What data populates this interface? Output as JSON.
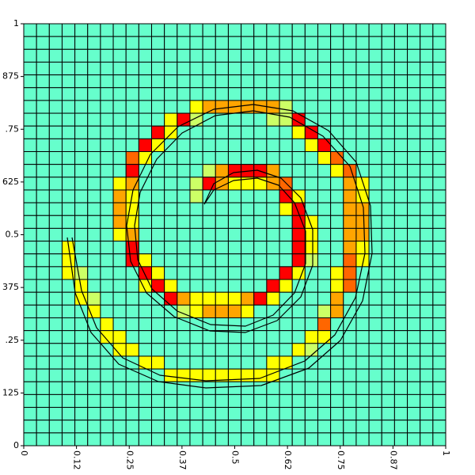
{
  "chart_data": {
    "type": "heatmap",
    "xlim": [
      0,
      1
    ],
    "ylim": [
      0,
      1
    ],
    "xticks": [
      0,
      {
        "value": 0.125,
        "label": "0.12"
      },
      0.25,
      {
        "value": 0.375,
        "label": "0.37"
      },
      0.5,
      {
        "value": 0.625,
        "label": "0.62"
      },
      0.75,
      {
        "value": 0.875,
        "label": "0.87"
      },
      1
    ],
    "yticks": [
      0,
      {
        "value": 0.125,
        "label": "125"
      },
      {
        "value": 0.25,
        "label": ".25"
      },
      {
        "value": 0.375,
        "label": "375"
      },
      0.5,
      {
        "value": 0.625,
        "label": "625"
      },
      {
        "value": 0.75,
        "label": ".75"
      },
      {
        "value": 0.875,
        "label": "875"
      },
      1
    ],
    "grid": true,
    "colors": [
      "#66ffcc",
      "#ccff66",
      "#ffff00",
      "#ffa500",
      "#ff6600",
      "#ff0000"
    ],
    "values": [
      [
        0,
        0,
        0,
        0,
        0,
        0,
        0,
        0,
        0,
        0,
        0,
        0,
        0,
        0,
        0,
        0,
        0,
        0,
        0,
        0,
        0,
        0,
        0,
        0,
        0,
        0,
        0,
        0,
        0,
        0,
        0,
        0,
        0
      ],
      [
        0,
        0,
        0,
        0,
        0,
        0,
        0,
        0,
        0,
        0,
        0,
        0,
        0,
        0,
        0,
        0,
        0,
        0,
        0,
        0,
        0,
        0,
        0,
        0,
        0,
        0,
        0,
        0,
        0,
        0,
        0,
        0,
        0
      ],
      [
        0,
        0,
        0,
        0,
        0,
        0,
        0,
        0,
        0,
        0,
        0,
        0,
        0,
        0,
        0,
        0,
        0,
        0,
        0,
        0,
        0,
        0,
        0,
        0,
        0,
        0,
        0,
        0,
        0,
        0,
        0,
        0,
        0
      ],
      [
        0,
        0,
        0,
        0,
        0,
        0,
        0,
        0,
        0,
        0,
        0,
        0,
        0,
        0,
        0,
        0,
        0,
        0,
        0,
        0,
        0,
        0,
        0,
        0,
        0,
        0,
        0,
        0,
        0,
        0,
        0,
        0,
        0
      ],
      [
        0,
        0,
        0,
        0,
        0,
        0,
        0,
        0,
        0,
        0,
        0,
        0,
        0,
        0,
        0,
        0,
        0,
        0,
        0,
        0,
        0,
        0,
        0,
        0,
        0,
        0,
        0,
        0,
        0,
        0,
        0,
        0,
        0
      ],
      [
        0,
        0,
        0,
        0,
        0,
        0,
        0,
        0,
        0,
        0,
        0,
        0,
        0,
        0,
        0,
        0,
        0,
        0,
        0,
        0,
        0,
        0,
        0,
        0,
        0,
        0,
        0,
        0,
        0,
        0,
        0,
        0,
        0
      ],
      [
        0,
        0,
        0,
        0,
        0,
        0,
        0,
        0,
        0,
        0,
        0,
        0,
        0,
        2,
        3,
        3,
        3,
        3,
        3,
        3,
        1,
        0,
        0,
        0,
        0,
        0,
        0,
        0,
        0,
        0,
        0,
        0,
        0
      ],
      [
        0,
        0,
        0,
        0,
        0,
        0,
        0,
        0,
        0,
        0,
        0,
        2,
        5,
        1,
        0,
        0,
        0,
        0,
        0,
        1,
        1,
        5,
        0,
        0,
        0,
        0,
        0,
        0,
        0,
        0,
        0,
        0,
        0
      ],
      [
        0,
        0,
        0,
        0,
        0,
        0,
        0,
        0,
        0,
        0,
        5,
        2,
        0,
        0,
        0,
        0,
        0,
        0,
        0,
        0,
        0,
        2,
        5,
        0,
        0,
        0,
        0,
        0,
        0,
        0,
        0,
        0,
        0
      ],
      [
        0,
        0,
        0,
        0,
        0,
        0,
        0,
        0,
        0,
        5,
        2,
        0,
        0,
        0,
        0,
        0,
        0,
        0,
        0,
        0,
        0,
        0,
        2,
        5,
        0,
        0,
        0,
        0,
        0,
        0,
        0,
        0,
        0
      ],
      [
        0,
        0,
        0,
        0,
        0,
        0,
        0,
        0,
        4,
        2,
        0,
        0,
        0,
        0,
        0,
        0,
        0,
        0,
        0,
        0,
        0,
        0,
        0,
        2,
        4,
        0,
        0,
        0,
        0,
        0,
        0,
        0,
        0
      ],
      [
        0,
        0,
        0,
        0,
        0,
        0,
        0,
        0,
        5,
        0,
        0,
        0,
        0,
        0,
        1,
        3,
        5,
        5,
        5,
        3,
        0,
        0,
        0,
        0,
        2,
        4,
        0,
        0,
        0,
        0,
        0,
        0,
        0
      ],
      [
        0,
        0,
        0,
        0,
        0,
        0,
        0,
        2,
        3,
        0,
        0,
        0,
        0,
        1,
        5,
        3,
        2,
        2,
        2,
        3,
        4,
        0,
        0,
        0,
        0,
        3,
        2,
        0,
        0,
        0,
        0,
        0,
        0
      ],
      [
        0,
        0,
        0,
        0,
        0,
        0,
        0,
        3,
        2,
        0,
        0,
        0,
        0,
        1,
        0,
        0,
        0,
        0,
        0,
        0,
        5,
        2,
        0,
        0,
        0,
        3,
        2,
        0,
        0,
        0,
        0,
        0,
        0
      ],
      [
        0,
        0,
        0,
        0,
        0,
        0,
        0,
        3,
        2,
        0,
        0,
        0,
        0,
        0,
        0,
        0,
        0,
        0,
        0,
        0,
        2,
        5,
        0,
        0,
        0,
        3,
        3,
        0,
        0,
        0,
        0,
        0,
        0
      ],
      [
        0,
        0,
        0,
        0,
        0,
        0,
        0,
        3,
        2,
        0,
        0,
        0,
        0,
        0,
        0,
        0,
        0,
        0,
        0,
        0,
        0,
        5,
        2,
        0,
        0,
        3,
        3,
        0,
        0,
        0,
        0,
        0,
        0
      ],
      [
        0,
        0,
        0,
        0,
        0,
        0,
        0,
        2,
        3,
        0,
        0,
        0,
        0,
        0,
        0,
        0,
        0,
        0,
        0,
        0,
        0,
        5,
        2,
        0,
        0,
        3,
        3,
        0,
        0,
        0,
        0,
        0,
        0
      ],
      [
        0,
        0,
        0,
        2,
        0,
        0,
        0,
        0,
        5,
        0,
        0,
        0,
        0,
        0,
        0,
        0,
        0,
        0,
        0,
        0,
        0,
        5,
        2,
        0,
        0,
        3,
        2,
        0,
        0,
        0,
        0,
        0,
        0
      ],
      [
        0,
        0,
        0,
        2,
        0,
        0,
        0,
        0,
        5,
        2,
        0,
        0,
        0,
        0,
        0,
        0,
        0,
        0,
        0,
        0,
        0,
        5,
        1,
        0,
        0,
        4,
        2,
        0,
        0,
        0,
        0,
        0,
        0
      ],
      [
        0,
        0,
        0,
        2,
        1,
        0,
        0,
        0,
        0,
        5,
        2,
        0,
        0,
        0,
        0,
        0,
        0,
        0,
        0,
        0,
        5,
        2,
        0,
        0,
        2,
        4,
        0,
        0,
        0,
        0,
        0,
        0,
        0
      ],
      [
        0,
        0,
        0,
        0,
        2,
        0,
        0,
        0,
        0,
        2,
        5,
        2,
        0,
        0,
        0,
        0,
        0,
        0,
        0,
        5,
        2,
        0,
        0,
        0,
        2,
        4,
        0,
        0,
        0,
        0,
        0,
        0,
        0
      ],
      [
        0,
        0,
        0,
        0,
        2,
        1,
        0,
        0,
        0,
        0,
        0,
        5,
        3,
        2,
        2,
        2,
        2,
        3,
        5,
        2,
        0,
        0,
        0,
        0,
        3,
        0,
        0,
        0,
        0,
        0,
        0,
        0,
        0
      ],
      [
        0,
        0,
        0,
        0,
        0,
        2,
        0,
        0,
        0,
        0,
        0,
        0,
        1,
        2,
        3,
        3,
        3,
        2,
        0,
        0,
        0,
        0,
        0,
        1,
        3,
        0,
        0,
        0,
        0,
        0,
        0,
        0,
        0
      ],
      [
        0,
        0,
        0,
        0,
        0,
        0,
        2,
        0,
        0,
        0,
        0,
        0,
        0,
        0,
        0,
        0,
        0,
        0,
        0,
        0,
        0,
        0,
        0,
        4,
        0,
        0,
        0,
        0,
        0,
        0,
        0,
        0,
        0
      ],
      [
        0,
        0,
        0,
        0,
        0,
        0,
        2,
        2,
        0,
        0,
        0,
        0,
        0,
        0,
        0,
        0,
        0,
        0,
        0,
        0,
        0,
        0,
        2,
        2,
        0,
        0,
        0,
        0,
        0,
        0,
        0,
        0,
        0
      ],
      [
        0,
        0,
        0,
        0,
        0,
        0,
        0,
        2,
        2,
        0,
        0,
        0,
        0,
        0,
        0,
        0,
        0,
        0,
        0,
        0,
        0,
        2,
        1,
        0,
        0,
        0,
        0,
        0,
        0,
        0,
        0,
        0,
        0
      ],
      [
        0,
        0,
        0,
        0,
        0,
        0,
        0,
        0,
        0,
        2,
        2,
        0,
        0,
        0,
        0,
        0,
        0,
        0,
        0,
        2,
        2,
        0,
        0,
        0,
        0,
        0,
        0,
        0,
        0,
        0,
        0,
        0,
        0
      ],
      [
        0,
        0,
        0,
        0,
        0,
        0,
        0,
        0,
        0,
        0,
        0,
        2,
        2,
        2,
        2,
        2,
        2,
        2,
        2,
        2,
        0,
        0,
        0,
        0,
        0,
        0,
        0,
        0,
        0,
        0,
        0,
        0,
        0
      ],
      [
        0,
        0,
        0,
        0,
        0,
        0,
        0,
        0,
        0,
        0,
        0,
        0,
        0,
        0,
        0,
        0,
        0,
        0,
        0,
        0,
        0,
        0,
        0,
        0,
        0,
        0,
        0,
        0,
        0,
        0,
        0,
        0,
        0
      ],
      [
        0,
        0,
        0,
        0,
        0,
        0,
        0,
        0,
        0,
        0,
        0,
        0,
        0,
        0,
        0,
        0,
        0,
        0,
        0,
        0,
        0,
        0,
        0,
        0,
        0,
        0,
        0,
        0,
        0,
        0,
        0,
        0,
        0
      ],
      [
        0,
        0,
        0,
        0,
        0,
        0,
        0,
        0,
        0,
        0,
        0,
        0,
        0,
        0,
        0,
        0,
        0,
        0,
        0,
        0,
        0,
        0,
        0,
        0,
        0,
        0,
        0,
        0,
        0,
        0,
        0,
        0,
        0
      ],
      [
        0,
        0,
        0,
        0,
        0,
        0,
        0,
        0,
        0,
        0,
        0,
        0,
        0,
        0,
        0,
        0,
        0,
        0,
        0,
        0,
        0,
        0,
        0,
        0,
        0,
        0,
        0,
        0,
        0,
        0,
        0,
        0,
        0
      ],
      [
        0,
        0,
        0,
        0,
        0,
        0,
        0,
        0,
        0,
        0,
        0,
        0,
        0,
        0,
        0,
        0,
        0,
        0,
        0,
        0,
        0,
        0,
        0,
        0,
        0,
        0,
        0,
        0,
        0,
        0,
        0,
        0,
        0
      ]
    ]
  }
}
